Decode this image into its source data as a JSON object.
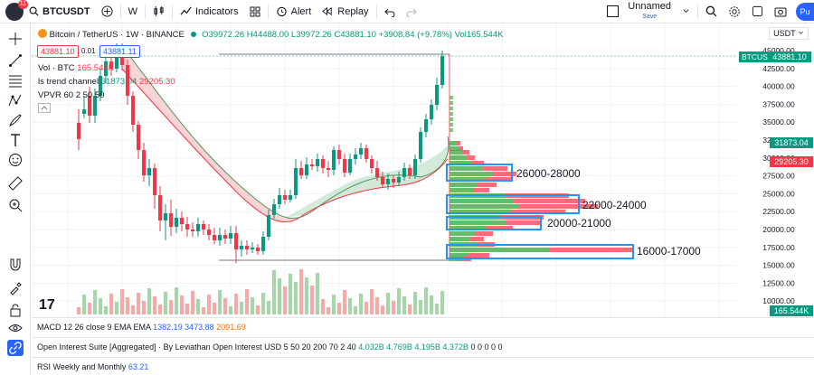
{
  "topbar": {
    "avatar_badge": "11",
    "symbol": "BTCUSDT",
    "interval": "W",
    "indicators_label": "Indicators",
    "alert_label": "Alert",
    "replay_label": "Replay",
    "layout_name": "Unnamed",
    "layout_save": "Save",
    "publish_label": "Pu"
  },
  "legend": {
    "title": "Bitcoin / TetherUS · 1W · BINANCE",
    "ohlc": "O39972.26 H44488.00 L39972.26 C43881.10 +3908.84 (+9.78%) Vol165.544K",
    "sell_price": "43881.10",
    "spread": "0.01",
    "buy_price": "43881.11",
    "vol_label": "Vol · BTC",
    "vol_value": "165.544K",
    "trend_label": "ls trend channel",
    "trend_v1": "31873.04",
    "trend_v2": "29205.30",
    "vpvr_label": "VPVR 60 2 50 50"
  },
  "price_axis": {
    "currency": "USDT",
    "ticks": [
      "45000.00",
      "42500.00",
      "40000.00",
      "37500.00",
      "35000.00",
      "32500.00",
      "30000.00",
      "27500.00",
      "25000.00",
      "22500.00",
      "20000.00",
      "17500.00",
      "15000.00",
      "12500.00",
      "10000.00"
    ],
    "last_symbol": "BTCUSDT",
    "last_price": "43881.10",
    "upper_tag": "31873.04",
    "lower_tag": "29205.30",
    "vol_tag": "165.544K"
  },
  "zones": [
    {
      "label": "26000-28000",
      "color": "#0c8a2f"
    },
    {
      "label": "22000-24000",
      "color": "#0c8a2f"
    },
    {
      "label": "20000-21000",
      "color": "#0c8a2f"
    },
    {
      "label": "16000-17000",
      "color": "#0c8a2f"
    }
  ],
  "panes": {
    "macd_label": "MACD 12 26 close 9 EMA EMA",
    "macd_v1": "1382.19",
    "macd_v2": "3473.88",
    "macd_v3": "2091.69",
    "oi_label": "Open Interest Suite [Aggregated] · By Leviathan Open Interest USD 5 50 20 200 70 2 40",
    "oi_v1": "4.032B",
    "oi_v2": "4.769B",
    "oi_v3": "4.195B",
    "oi_v4": "4.372B",
    "oi_zeros": "0 0 0 0 0",
    "rsi_label": "RSI Weekly and Monthly",
    "rsi_value": "63.21"
  },
  "colors": {
    "up": "#089981",
    "down": "#f23645",
    "accent": "#2962ff"
  },
  "icons": [
    "crosshair-icon",
    "trendline-icon",
    "fib-icon",
    "pattern-icon",
    "brush-icon",
    "text-icon",
    "emoji-icon",
    "ruler-icon",
    "zoom-icon",
    "magnet-icon",
    "lock-draw-icon",
    "lock-icon",
    "eye-icon",
    "link-icon"
  ]
}
